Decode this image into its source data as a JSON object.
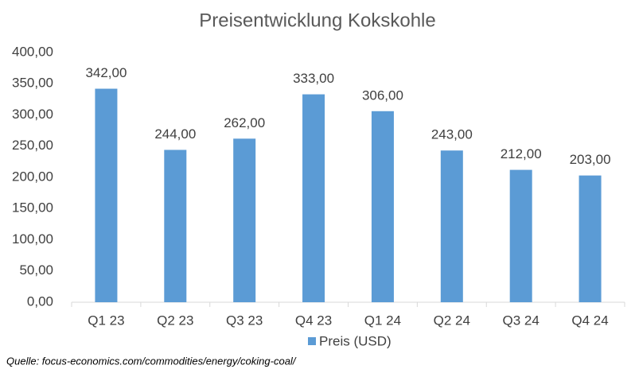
{
  "chart_data": {
    "type": "bar",
    "title": "Preisentwicklung Kokskohle",
    "categories": [
      "Q1 23",
      "Q2 23",
      "Q3 23",
      "Q4 23",
      "Q1 24",
      "Q2 24",
      "Q3 24",
      "Q4 24"
    ],
    "series": [
      {
        "name": "Preis (USD)",
        "color": "#5b9bd5",
        "values": [
          342,
          244,
          262,
          333,
          306,
          243,
          212,
          203
        ],
        "value_labels": [
          "342,00",
          "244,00",
          "262,00",
          "333,00",
          "306,00",
          "243,00",
          "212,00",
          "203,00"
        ]
      }
    ],
    "ylim": [
      0,
      400
    ],
    "yticks": [
      {
        "value": 0,
        "label": "0,00"
      },
      {
        "value": 50,
        "label": "50,00"
      },
      {
        "value": 100,
        "label": "100,00"
      },
      {
        "value": 150,
        "label": "150,00"
      },
      {
        "value": 200,
        "label": "200,00"
      },
      {
        "value": 250,
        "label": "250,00"
      },
      {
        "value": 300,
        "label": "300,00"
      },
      {
        "value": 350,
        "label": "350,00"
      },
      {
        "value": 400,
        "label": "400,00"
      }
    ],
    "grid": false,
    "legend": "bottom",
    "source": "Quelle: focus-economics.com/commodities/energy/coking-coal/"
  }
}
